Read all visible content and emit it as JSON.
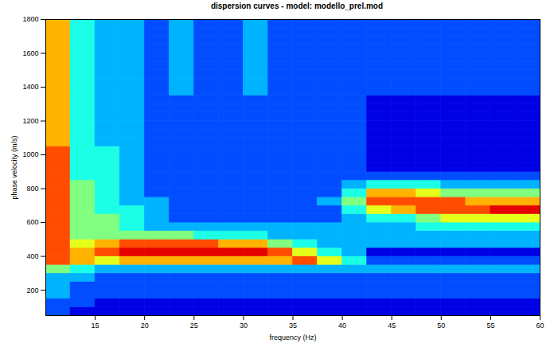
{
  "chart_data": {
    "type": "heatmap",
    "title": "dispersion curves - model: modello_prel.mod",
    "x_label": "frequency (Hz)",
    "y_label": "phase velocity (m/s)",
    "xlim": [
      10,
      60
    ],
    "ylim": [
      50,
      1800
    ],
    "xticks": [
      15,
      20,
      25,
      30,
      35,
      40,
      45,
      50,
      55,
      60
    ],
    "yticks": [
      200,
      400,
      600,
      800,
      1000,
      1200,
      1400,
      1600,
      1800
    ],
    "color": "jet",
    "color_range": [
      0,
      10
    ],
    "x_edges": [
      10,
      12.5,
      15,
      17.5,
      20,
      22.5,
      25,
      27.5,
      30,
      32.5,
      35,
      37.5,
      40,
      42.5,
      45,
      47.5,
      50,
      52.5,
      55,
      57.5,
      60
    ],
    "y_edges": [
      50,
      100,
      150,
      200,
      250,
      300,
      350,
      400,
      450,
      500,
      550,
      600,
      650,
      700,
      750,
      800,
      850,
      900,
      950,
      1000,
      1050,
      1100,
      1150,
      1200,
      1250,
      1300,
      1350,
      1400,
      1450,
      1500,
      1550,
      1600,
      1650,
      1700,
      1750,
      1800
    ],
    "cells": [
      [
        2,
        1,
        1,
        1,
        1,
        1,
        1,
        1,
        1,
        1,
        1,
        1,
        1,
        1,
        1,
        1,
        1,
        1,
        1,
        1
      ],
      [
        2,
        2,
        1,
        1,
        1,
        1,
        1,
        1,
        1,
        1,
        1,
        1,
        1,
        1,
        1,
        1,
        1,
        1,
        1,
        1
      ],
      [
        3,
        2,
        2,
        2,
        2,
        2,
        2,
        2,
        2,
        2,
        2,
        2,
        2,
        2,
        2,
        2,
        2,
        2,
        2,
        2
      ],
      [
        3,
        2,
        2,
        2,
        2,
        2,
        2,
        2,
        2,
        2,
        2,
        2,
        2,
        2,
        2,
        2,
        2,
        2,
        2,
        2
      ],
      [
        3,
        3,
        2,
        2,
        2,
        2,
        2,
        2,
        2,
        2,
        2,
        2,
        2,
        2,
        2,
        2,
        2,
        2,
        2,
        2
      ],
      [
        5,
        4,
        3,
        3,
        3,
        3,
        3,
        3,
        3,
        3,
        3,
        3,
        3,
        3,
        3,
        3,
        3,
        3,
        3,
        3
      ],
      [
        8,
        7,
        6,
        7,
        7,
        7,
        7,
        7,
        7,
        7,
        8,
        6,
        4,
        2,
        2,
        2,
        2,
        2,
        2,
        2
      ],
      [
        8,
        7,
        8,
        9,
        9,
        9,
        9,
        9,
        9,
        8,
        6,
        4,
        3,
        1,
        1,
        1,
        1,
        1,
        1,
        1
      ],
      [
        8,
        6,
        7,
        8,
        8,
        8,
        8,
        7,
        7,
        5,
        4,
        3,
        3,
        3,
        3,
        3,
        3,
        3,
        3,
        3
      ],
      [
        8,
        5,
        5,
        5,
        5,
        5,
        4,
        4,
        4,
        3,
        3,
        3,
        3,
        3,
        3,
        3,
        3,
        3,
        3,
        3
      ],
      [
        8,
        5,
        5,
        4,
        3,
        3,
        3,
        3,
        3,
        3,
        3,
        3,
        3,
        3,
        3,
        4,
        4,
        4,
        4,
        4
      ],
      [
        8,
        5,
        5,
        4,
        3,
        2,
        2,
        2,
        2,
        2,
        2,
        2,
        3,
        4,
        4,
        5,
        6,
        6,
        6,
        6
      ],
      [
        8,
        5,
        4,
        4,
        3,
        2,
        2,
        2,
        2,
        2,
        2,
        2,
        4,
        6,
        7,
        8,
        8,
        8,
        9,
        9
      ],
      [
        8,
        5,
        4,
        3,
        3,
        2,
        2,
        2,
        2,
        2,
        2,
        3,
        5,
        8,
        8,
        8,
        8,
        7,
        7,
        7
      ],
      [
        8,
        5,
        4,
        3,
        2,
        2,
        2,
        2,
        2,
        2,
        2,
        2,
        4,
        7,
        7,
        6,
        5,
        5,
        5,
        5
      ],
      [
        8,
        5,
        4,
        3,
        2,
        2,
        2,
        2,
        2,
        2,
        2,
        2,
        3,
        4,
        4,
        4,
        3,
        3,
        3,
        3
      ],
      [
        8,
        4,
        4,
        3,
        2,
        2,
        2,
        2,
        2,
        2,
        2,
        2,
        2,
        2,
        2,
        2,
        2,
        2,
        2,
        2
      ],
      [
        8,
        4,
        4,
        3,
        2,
        2,
        2,
        2,
        2,
        2,
        2,
        2,
        2,
        1,
        1,
        1,
        1,
        1,
        1,
        1
      ],
      [
        8,
        4,
        4,
        3,
        2,
        2,
        2,
        2,
        2,
        2,
        2,
        2,
        2,
        1,
        1,
        1,
        1,
        1,
        1,
        1
      ],
      [
        8,
        4,
        4,
        3,
        2,
        2,
        2,
        2,
        2,
        2,
        2,
        2,
        2,
        1,
        1,
        1,
        1,
        1,
        1,
        1
      ],
      [
        7,
        4,
        3,
        3,
        2,
        2,
        2,
        2,
        2,
        2,
        2,
        2,
        2,
        1,
        1,
        1,
        1,
        1,
        1,
        1
      ],
      [
        7,
        4,
        3,
        3,
        2,
        2,
        2,
        2,
        2,
        2,
        2,
        2,
        2,
        1,
        1,
        1,
        1,
        1,
        1,
        1
      ],
      [
        7,
        4,
        3,
        3,
        2,
        2,
        2,
        2,
        2,
        2,
        2,
        2,
        2,
        1,
        1,
        1,
        1,
        1,
        1,
        1
      ],
      [
        7,
        4,
        3,
        3,
        2,
        2,
        2,
        2,
        2,
        2,
        2,
        2,
        2,
        1,
        1,
        1,
        1,
        1,
        1,
        1
      ],
      [
        7,
        4,
        3,
        3,
        2,
        2,
        2,
        2,
        2,
        2,
        2,
        2,
        2,
        1,
        1,
        1,
        1,
        1,
        1,
        1
      ],
      [
        7,
        4,
        3,
        3,
        2,
        2,
        2,
        2,
        2,
        2,
        2,
        2,
        2,
        1,
        1,
        1,
        1,
        1,
        1,
        1
      ],
      [
        7,
        4,
        3,
        3,
        2,
        3,
        2,
        2,
        3,
        2,
        2,
        2,
        2,
        2,
        2,
        2,
        2,
        2,
        2,
        2
      ],
      [
        7,
        4,
        3,
        3,
        2,
        3,
        2,
        2,
        3,
        2,
        2,
        2,
        2,
        2,
        2,
        2,
        2,
        2,
        2,
        2
      ],
      [
        7,
        4,
        3,
        3,
        2,
        3,
        2,
        2,
        3,
        2,
        2,
        2,
        2,
        2,
        2,
        2,
        2,
        2,
        2,
        2
      ],
      [
        7,
        4,
        3,
        3,
        2,
        3,
        2,
        2,
        3,
        2,
        2,
        2,
        2,
        2,
        2,
        2,
        2,
        2,
        2,
        2
      ],
      [
        7,
        4,
        3,
        3,
        2,
        3,
        2,
        2,
        3,
        2,
        2,
        2,
        2,
        2,
        2,
        2,
        2,
        2,
        2,
        2
      ],
      [
        7,
        4,
        3,
        3,
        2,
        3,
        2,
        2,
        3,
        2,
        2,
        2,
        2,
        2,
        2,
        2,
        2,
        2,
        2,
        2
      ],
      [
        7,
        4,
        3,
        3,
        2,
        3,
        2,
        2,
        3,
        2,
        2,
        2,
        2,
        2,
        2,
        2,
        2,
        2,
        2,
        2
      ],
      [
        7,
        4,
        3,
        3,
        2,
        3,
        2,
        2,
        3,
        2,
        2,
        2,
        2,
        2,
        2,
        2,
        2,
        2,
        2,
        2
      ],
      [
        7,
        4,
        3,
        3,
        2,
        3,
        2,
        2,
        3,
        2,
        2,
        2,
        2,
        2,
        2,
        2,
        2,
        2,
        2,
        2
      ]
    ]
  }
}
